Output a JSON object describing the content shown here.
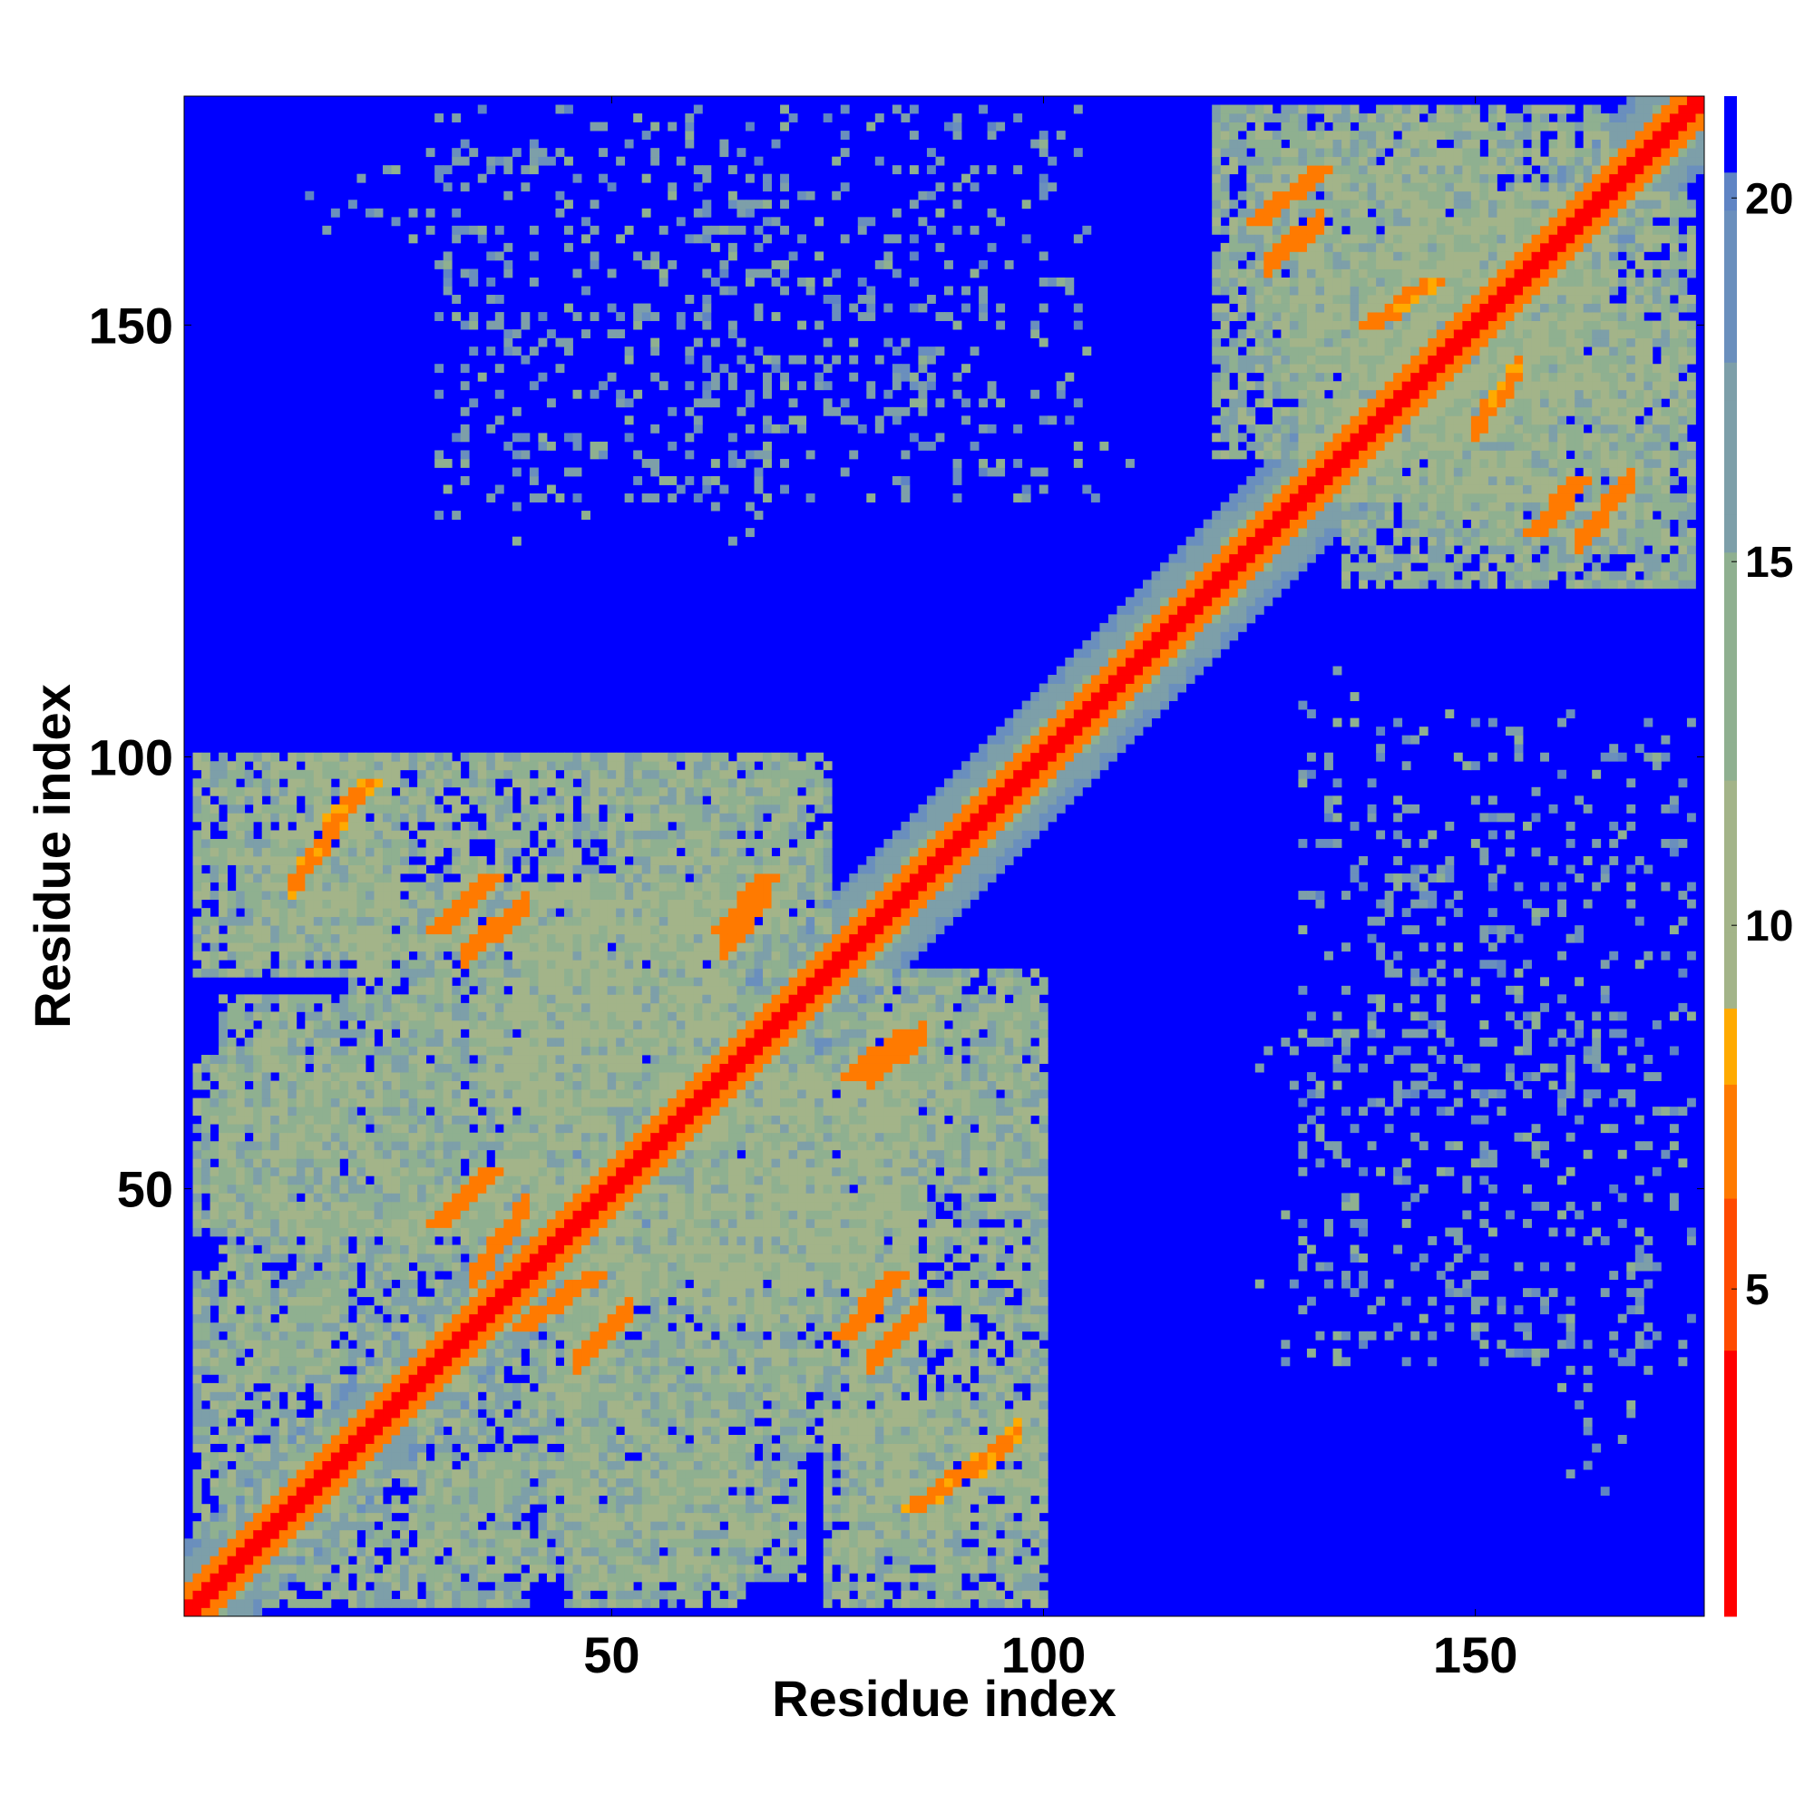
{
  "chart_data": {
    "type": "heatmap",
    "title": "",
    "xlabel": "Residue index",
    "ylabel": "Residue index",
    "n_residues": 176,
    "xlim": [
      1,
      176
    ],
    "ylim": [
      1,
      176
    ],
    "x_ticks": [
      50,
      100,
      150
    ],
    "y_ticks": [
      50,
      100,
      150
    ],
    "colorbar": {
      "range": [
        0.5,
        21.4
      ],
      "ticks": [
        5,
        10,
        15,
        20
      ],
      "stops": [
        {
          "value": 0.5,
          "color": "#ff0000"
        },
        {
          "value": 4.0,
          "color": "#ff4a00"
        },
        {
          "value": 6.0,
          "color": "#ff7a00"
        },
        {
          "value": 8.0,
          "color": "#ffaa00"
        },
        {
          "value": 9.0,
          "color": "#a3b489"
        },
        {
          "value": 12.0,
          "color": "#8fb090"
        },
        {
          "value": 15.0,
          "color": "#7d9fa9"
        },
        {
          "value": 18.0,
          "color": "#6a8fbd"
        },
        {
          "value": 20.0,
          "color": "#5f84c4"
        },
        {
          "value": 20.5,
          "color": "#0000ff"
        }
      ]
    },
    "background_color": "#0000ff",
    "diagonal_band": {
      "core_value": 1.0,
      "core_halfwidth": 1.5,
      "orange_halfwidth": 3.0,
      "halo_halfwidth": 8.0
    },
    "contact_regions": [
      {
        "x": [
          10,
          45
        ],
        "y": [
          78,
          100
        ],
        "value": 13
      },
      {
        "x": [
          45,
          70
        ],
        "y": [
          76,
          100
        ],
        "value": 14
      },
      {
        "x": [
          35,
          65
        ],
        "y": [
          60,
          80
        ],
        "value": 13
      },
      {
        "x": [
          5,
          40
        ],
        "y": [
          45,
          72
        ],
        "value": 14
      },
      {
        "x": [
          40,
          85
        ],
        "y": [
          40,
          72
        ],
        "value": 14
      },
      {
        "x": [
          5,
          35
        ],
        "y": [
          28,
          48
        ],
        "value": 14
      },
      {
        "x": [
          45,
          85
        ],
        "y": [
          20,
          50
        ],
        "value": 14
      },
      {
        "x": [
          75,
          100
        ],
        "y": [
          2,
          25
        ],
        "value": 13
      },
      {
        "x": [
          45,
          65
        ],
        "y": [
          2,
          20
        ],
        "value": 14
      },
      {
        "x": [
          10,
          40
        ],
        "y": [
          2,
          18
        ],
        "value": 14
      },
      {
        "x": [
          80,
          100
        ],
        "y": [
          50,
          75
        ],
        "value": 14
      },
      {
        "x": [
          135,
          175
        ],
        "y": [
          120,
          150
        ],
        "value": 14
      },
      {
        "x": [
          125,
          145
        ],
        "y": [
          145,
          172
        ],
        "value": 14
      },
      {
        "x": [
          140,
          165
        ],
        "y": [
          150,
          175
        ],
        "value": 13
      },
      {
        "x": [
          130,
          160
        ],
        "y": [
          130,
          150
        ],
        "value": 14
      }
    ],
    "secondary_structure_contacts": [
      {
        "from": [
          30,
          80
        ],
        "to": [
          36,
          86
        ],
        "value": 6
      },
      {
        "from": [
          63,
          80
        ],
        "to": [
          68,
          86
        ],
        "value": 6
      },
      {
        "from": [
          78,
          63
        ],
        "to": [
          84,
          68
        ],
        "value": 6
      },
      {
        "from": [
          30,
          46
        ],
        "to": [
          36,
          52
        ],
        "value": 6
      },
      {
        "from": [
          40,
          34
        ],
        "to": [
          48,
          40
        ],
        "value": 6
      },
      {
        "from": [
          77,
          33
        ],
        "to": [
          83,
          40
        ],
        "value": 6
      },
      {
        "from": [
          125,
          162
        ],
        "to": [
          132,
          168
        ],
        "value": 6
      },
      {
        "from": [
          157,
          126
        ],
        "to": [
          162,
          132
        ],
        "value": 6
      },
      {
        "from": [
          133,
          133
        ],
        "to": [
          150,
          150
        ],
        "value": 7
      },
      {
        "from": [
          138,
          150
        ],
        "to": [
          145,
          155
        ],
        "value": 7
      },
      {
        "from": [
          18,
          93
        ],
        "to": [
          22,
          97
        ],
        "value": 7
      },
      {
        "from": [
          85,
          13
        ],
        "to": [
          95,
          20
        ],
        "value": 7
      }
    ],
    "sparse_contacts": [
      {
        "x": [
          60,
          95
        ],
        "y": [
          135,
          170
        ],
        "value": 18
      },
      {
        "x": [
          30,
          70
        ],
        "y": [
          130,
          170
        ],
        "value": 18
      },
      {
        "x": [
          90,
          110
        ],
        "y": [
          130,
          136
        ],
        "value": 18
      },
      {
        "x": [
          130,
          175
        ],
        "y": [
          70,
          105
        ],
        "value": 18
      },
      {
        "x": [
          125,
          175
        ],
        "y": [
          30,
          70
        ],
        "value": 18
      },
      {
        "x": [
          160,
          170
        ],
        "y": [
          15,
          45
        ],
        "value": 18
      }
    ]
  }
}
